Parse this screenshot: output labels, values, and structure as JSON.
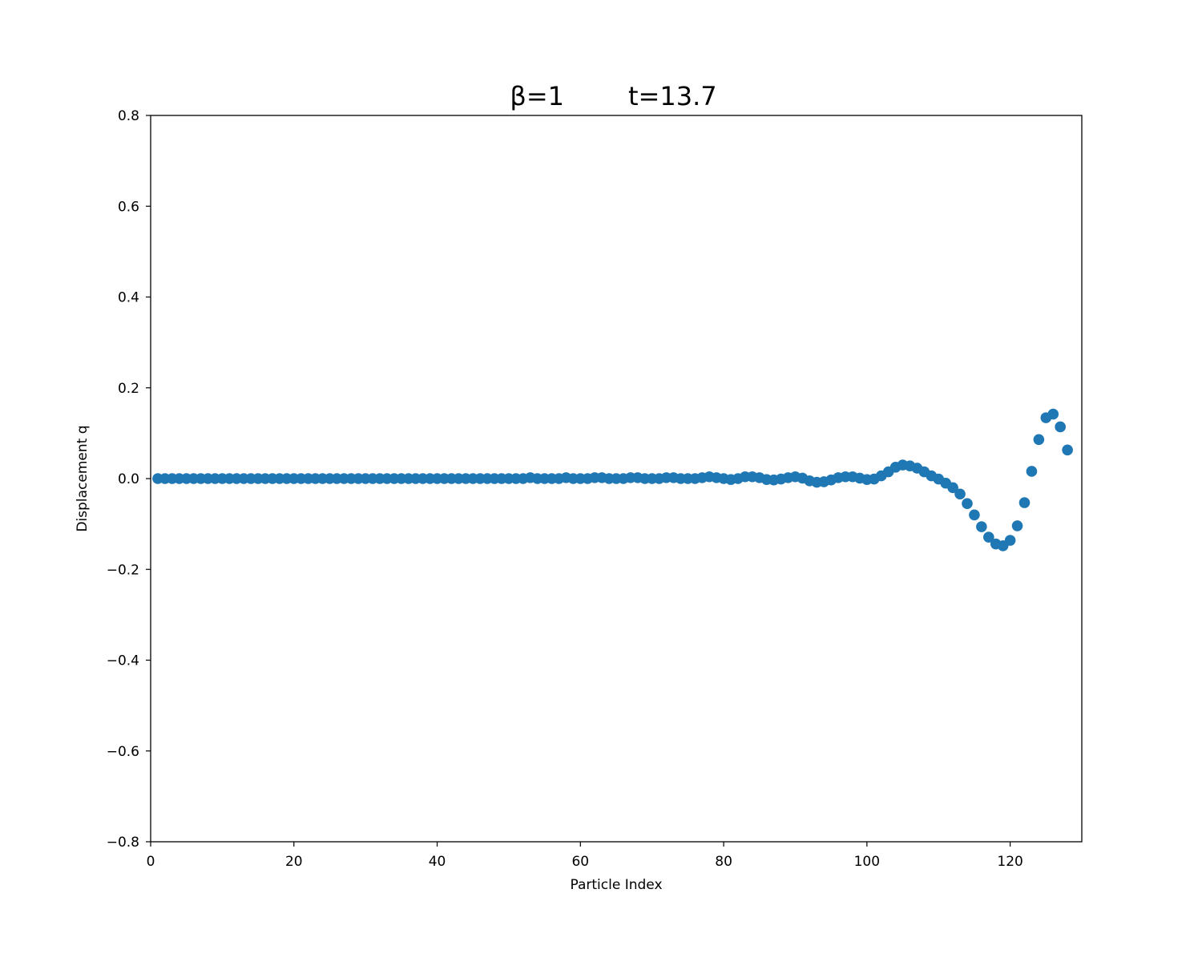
{
  "chart_data": {
    "type": "scatter",
    "title_left": "β=1",
    "title_right": "t=13.7",
    "xlabel": "Particle Index",
    "ylabel": "Displacement q",
    "xlim": [
      0,
      130
    ],
    "ylim": [
      -0.8,
      0.8
    ],
    "x_ticks": [
      "0",
      "20",
      "40",
      "60",
      "80",
      "100",
      "120"
    ],
    "y_ticks": [
      "0.8",
      "0.6",
      "0.4",
      "0.2",
      "0.0",
      "−0.2",
      "−0.4",
      "−0.6",
      "−0.8"
    ],
    "grid": false,
    "colors": {
      "series": "#1f77b4"
    },
    "series": [
      {
        "x": [
          1,
          2,
          3,
          4,
          5,
          6,
          7,
          8,
          9,
          10,
          11,
          12,
          13,
          14,
          15,
          16,
          17,
          18,
          19,
          20,
          21,
          22,
          23,
          24,
          25,
          26,
          27,
          28,
          29,
          30,
          31,
          32,
          33,
          34,
          35,
          36,
          37,
          38,
          39,
          40,
          41,
          42,
          43,
          44,
          45,
          46,
          47,
          48,
          49,
          50,
          51,
          52,
          53,
          54,
          55,
          56,
          57,
          58,
          59,
          60,
          61,
          62,
          63,
          64,
          65,
          66,
          67,
          68,
          69,
          70,
          71,
          72,
          73,
          74,
          75,
          76,
          77,
          78,
          79,
          80,
          81,
          82,
          83,
          84,
          85,
          86,
          87,
          88,
          89,
          90,
          91,
          92,
          93,
          94,
          95,
          96,
          97,
          98,
          99,
          100,
          101,
          102,
          103,
          104,
          105,
          106,
          107,
          108,
          109,
          110,
          111,
          112,
          113,
          114,
          115,
          116,
          117,
          118,
          119,
          120,
          121,
          122,
          123,
          124,
          125,
          126,
          127,
          128
        ],
        "values": [
          0,
          0,
          0,
          0,
          0,
          0,
          0,
          0,
          0,
          0,
          0,
          0,
          0,
          0,
          0,
          0,
          0,
          0,
          0,
          0,
          0,
          0,
          0,
          0,
          0,
          0,
          0,
          0,
          0,
          0,
          0,
          0,
          0,
          0,
          0,
          0,
          0,
          0,
          0,
          0,
          0,
          0,
          0,
          0,
          0,
          0,
          0,
          0,
          0,
          0,
          0,
          0,
          0.002,
          0,
          0,
          0,
          0,
          0.002,
          0,
          0,
          0,
          0.002,
          0.002,
          0,
          0,
          0,
          0.002,
          0.002,
          0,
          0,
          0,
          0.002,
          0.002,
          0,
          0,
          0,
          0.002,
          0.004,
          0.002,
          0,
          -0.002,
          0,
          0.004,
          0.004,
          0.002,
          -0.002,
          -0.003,
          -0.001,
          0.002,
          0.004,
          0.001,
          -0.005,
          -0.008,
          -0.007,
          -0.003,
          0.002,
          0.004,
          0.004,
          0.001,
          -0.002,
          -0.001,
          0.006,
          0.015,
          0.025,
          0.03,
          0.028,
          0.023,
          0.015,
          0.006,
          -0.001,
          -0.01,
          -0.02,
          -0.034,
          -0.055,
          -0.08,
          -0.106,
          -0.129,
          -0.144,
          -0.148,
          -0.136,
          -0.104,
          -0.053,
          0.016,
          0.086,
          0.134,
          0.142,
          0.114,
          0.063
        ]
      }
    ]
  }
}
